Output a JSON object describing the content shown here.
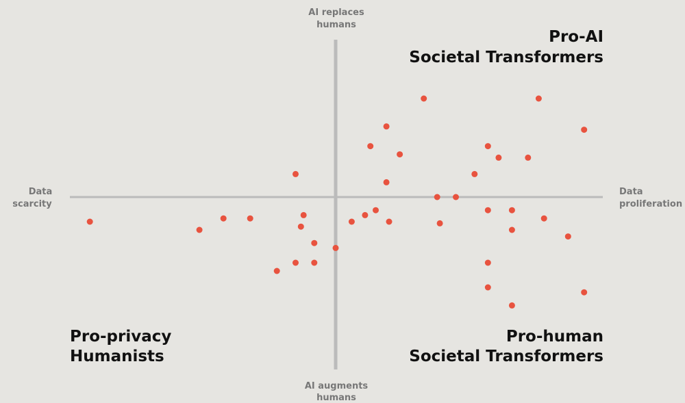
{
  "chart_data": {
    "type": "scatter",
    "axis_labels": {
      "top": [
        "AI replaces",
        "humans"
      ],
      "bottom": [
        "AI augments",
        "humans"
      ],
      "left": [
        "Data",
        "scarcity"
      ],
      "right": [
        "Data",
        "proliferation"
      ]
    },
    "quadrant_labels": {
      "top_right": [
        "Pro-AI",
        "Societal Transformers"
      ],
      "bottom_left": [
        "Pro-privacy",
        "Humanists"
      ],
      "bottom_right": [
        "Pro-human",
        "Societal Transformers"
      ]
    },
    "color": "#e8533f",
    "xlim": [
      -10,
      10
    ],
    "ylim": [
      -10,
      10
    ],
    "x": [
      3.3,
      7.6,
      1.9,
      9.3,
      1.3,
      5.7,
      2.4,
      6.1,
      7.2,
      -1.5,
      5.2,
      1.9,
      3.8,
      4.5,
      1.5,
      5.7,
      6.6,
      -1.2,
      1.1,
      7.8,
      -9.2,
      -4.2,
      -3.2,
      0.6,
      2.0,
      3.9,
      -1.3,
      -5.1,
      6.6,
      8.7,
      -0.8,
      0,
      -1.5,
      -0.8,
      5.7,
      -2.2,
      5.7,
      9.3,
      6.6
    ],
    "values": [
      6.0,
      6.0,
      4.3,
      4.1,
      3.1,
      3.1,
      2.6,
      2.4,
      2.4,
      1.4,
      1.4,
      0.9,
      0,
      0,
      -0.8,
      -0.8,
      -0.8,
      -1.1,
      -1.1,
      -1.3,
      -1.5,
      -1.3,
      -1.3,
      -1.5,
      -1.5,
      -1.6,
      -1.8,
      -2.0,
      -2.0,
      -2.4,
      -2.8,
      -3.1,
      -4.0,
      -4.0,
      -4.0,
      -4.5,
      -5.5,
      -5.8,
      -6.6
    ]
  }
}
